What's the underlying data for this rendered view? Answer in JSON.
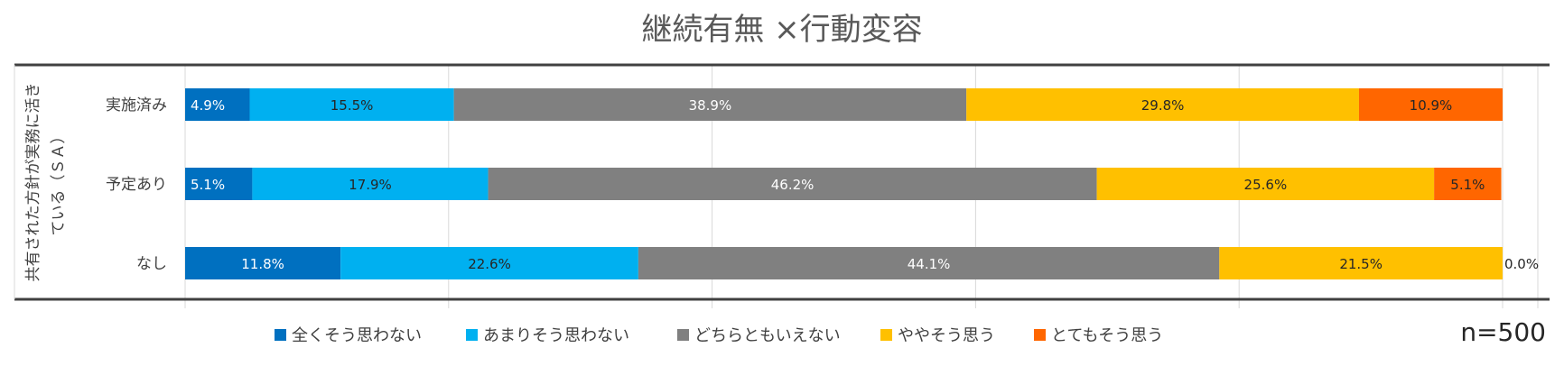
{
  "chart_data": {
    "type": "bar",
    "orientation": "horizontal",
    "stacked": "percent",
    "title": "継続有無 ×行動変容",
    "ylabel_lines": [
      "共有された方針が実務に活き",
      "ている（ＳＡ）"
    ],
    "categories": [
      "実施済み",
      "予定あり",
      "なし"
    ],
    "series": [
      {
        "name": "全くそう思わない",
        "values": [
          4.9,
          5.1,
          11.8
        ],
        "labels": [
          "4.9%",
          "5.1%",
          "11.8%"
        ]
      },
      {
        "name": "あまりそう思わない",
        "values": [
          15.5,
          17.9,
          22.6
        ],
        "labels": [
          "15.5%",
          "17.9%",
          "22.6%"
        ]
      },
      {
        "name": "どちらともいえない",
        "values": [
          38.9,
          46.2,
          44.1
        ],
        "labels": [
          "38.9%",
          "46.2%",
          "44.1%"
        ]
      },
      {
        "name": "ややそう思う",
        "values": [
          29.8,
          25.6,
          21.5
        ],
        "labels": [
          "29.8%",
          "25.6%",
          "21.5%"
        ]
      },
      {
        "name": "とてもそう思う",
        "values": [
          10.9,
          5.1,
          0.0
        ],
        "labels": [
          "10.9%",
          "5.1%",
          "0.0%"
        ]
      }
    ],
    "xlim": [
      0,
      100
    ],
    "grid": true,
    "legend_position": "bottom",
    "note": "n=500",
    "colors": {
      "series": [
        "#0070C0",
        "#00B0F0",
        "#808080",
        "#FFC000",
        "#FF6600"
      ],
      "label_light": "#ffffff",
      "label_dark": "#262626",
      "title": "#595959",
      "axis_text": "#404040",
      "grid": "#d9d9d9",
      "frame": "#404040"
    }
  }
}
